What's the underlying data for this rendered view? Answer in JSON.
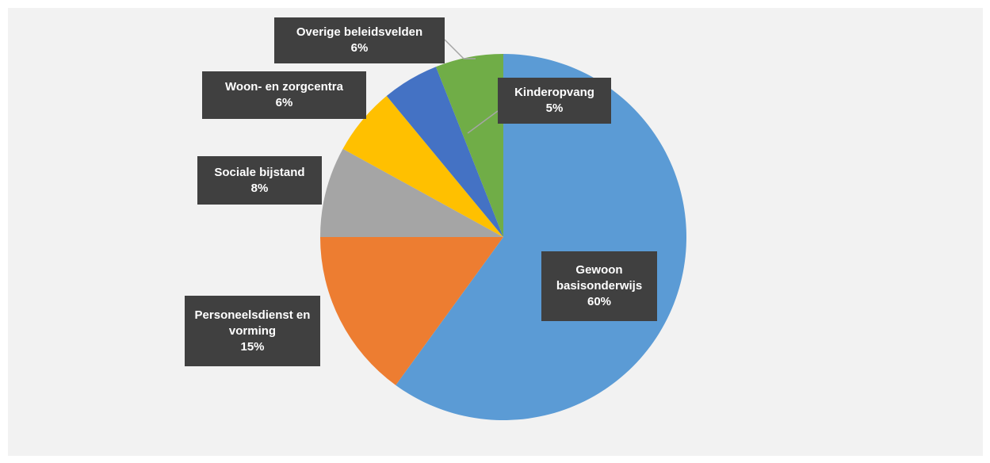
{
  "chart_data": {
    "type": "pie",
    "categories": [
      "Gewoon basisonderwijs",
      "Personeelsdienst en vorming",
      "Sociale bijstand",
      "Woon- en zorgcentra",
      "Kinderopvang",
      "Overige beleidsvelden"
    ],
    "values": [
      60,
      15,
      8,
      6,
      5,
      6
    ],
    "value_labels": [
      "60%",
      "15%",
      "8%",
      "6%",
      "5%",
      "6%"
    ],
    "colors": [
      "#5b9bd5",
      "#ed7d31",
      "#a5a5a5",
      "#ffc000",
      "#4472c4",
      "#70ad47"
    ]
  }
}
